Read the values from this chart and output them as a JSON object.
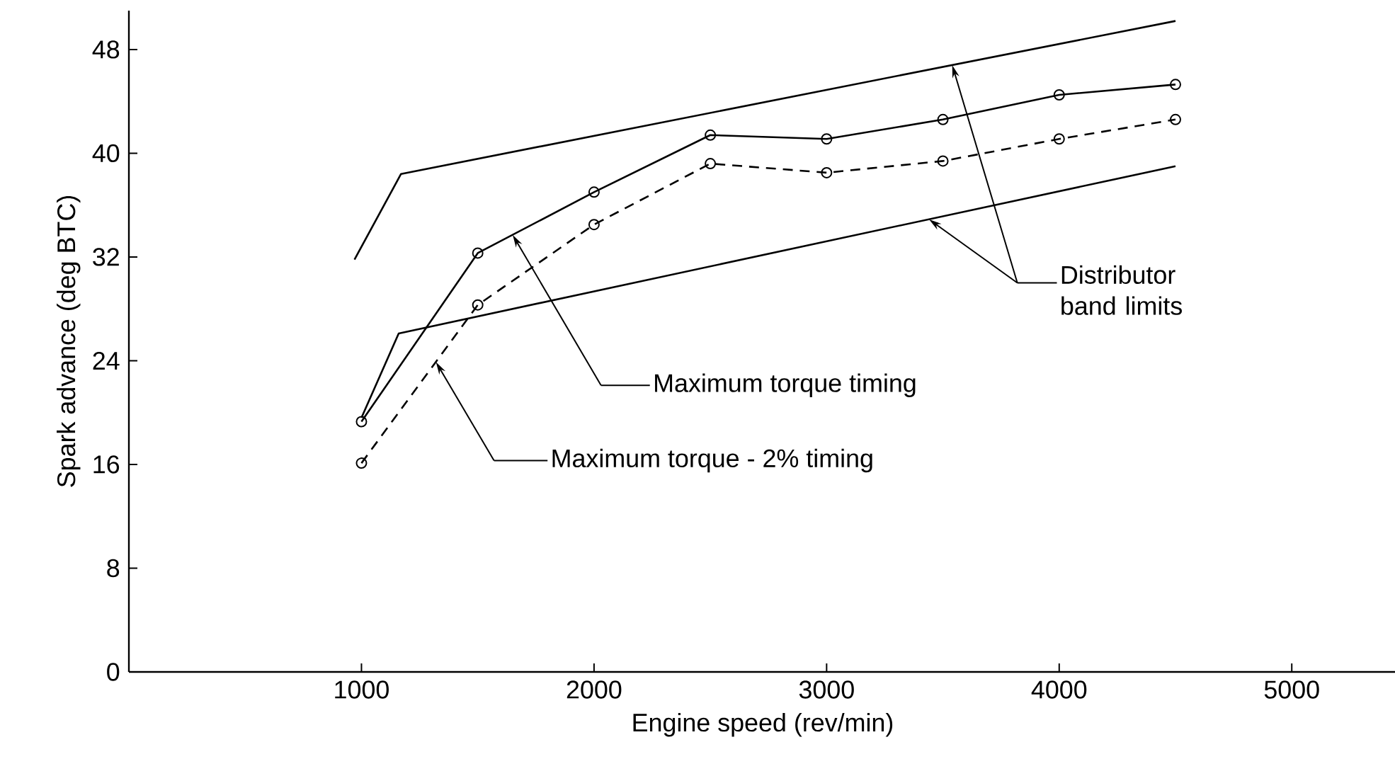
{
  "chart_data": {
    "type": "line",
    "xlabel": "Engine speed (rev/min)",
    "ylabel": "Spark advance (deg BTC)",
    "xlim": [
      0,
      5450
    ],
    "ylim": [
      0,
      51
    ],
    "xticks": [
      1000,
      2000,
      3000,
      4000,
      5000
    ],
    "yticks": [
      0,
      8,
      16,
      24,
      32,
      40,
      48
    ],
    "marker": "circle",
    "series": [
      {
        "color": "#000000",
        "line_style": "solid",
        "x": [
          1000,
          1500,
          2000,
          2500,
          3000,
          3500,
          4000,
          4500
        ],
        "values": [
          19.3,
          32.3,
          37.0,
          41.4,
          41.1,
          42.6,
          44.5,
          45.3
        ]
      },
      {
        "color": "#000000",
        "line_style": "dashed",
        "x": [
          1000,
          1500,
          2000,
          2500,
          3000,
          3500,
          4000,
          4500
        ],
        "values": [
          16.1,
          28.3,
          34.5,
          39.2,
          38.5,
          39.4,
          41.1,
          42.6
        ]
      },
      {
        "color": "#000000",
        "line_style": "solid",
        "marker": "none",
        "x": [
          970,
          1170,
          4500
        ],
        "values": [
          31.8,
          38.4,
          50.2
        ]
      },
      {
        "color": "#000000",
        "line_style": "solid",
        "marker": "none",
        "x": [
          1000,
          1160,
          4500
        ],
        "values": [
          19.6,
          26.1,
          39.0
        ]
      }
    ],
    "annotations": [
      "Maximum torque timing",
      "Maximum torque - 2% timing",
      "Distributor band limits"
    ]
  }
}
